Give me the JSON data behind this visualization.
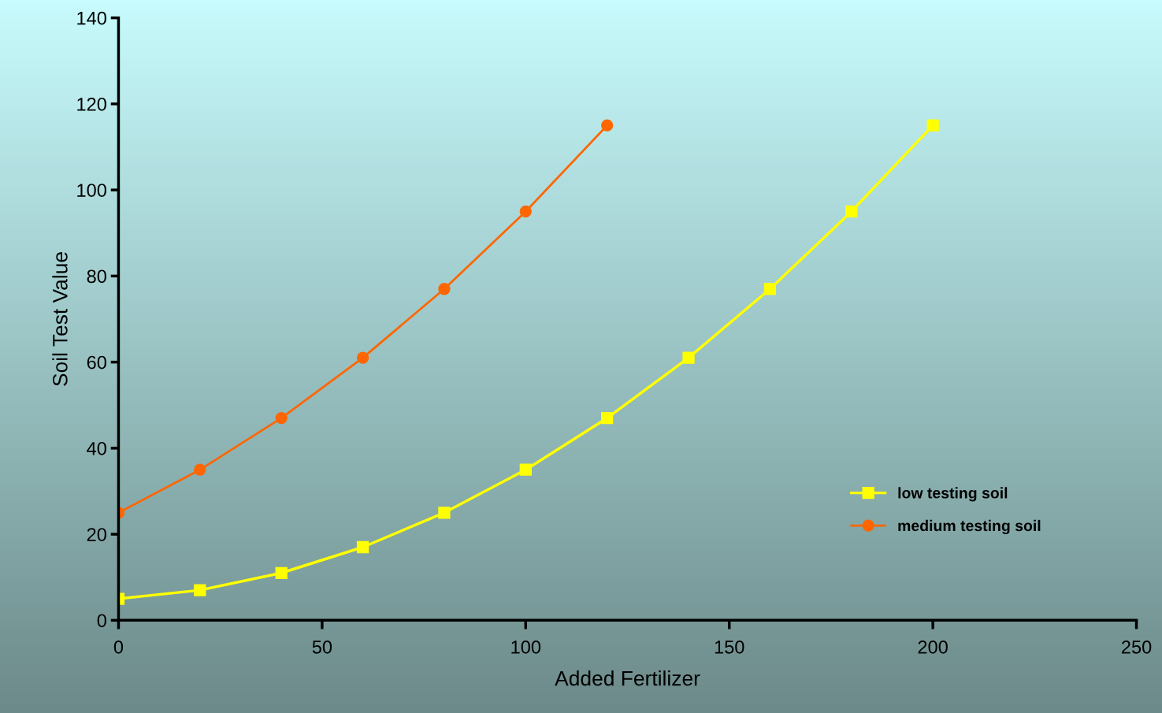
{
  "chart_data": {
    "type": "line",
    "xlabel": "Added Fertilizer",
    "ylabel": "Soil Test Value",
    "xlim": [
      0,
      250
    ],
    "xticks": [
      0,
      50,
      100,
      150,
      200,
      250
    ],
    "ylim": [
      0,
      140
    ],
    "yticks": [
      0,
      20,
      40,
      60,
      80,
      100,
      120,
      140
    ],
    "grid": false,
    "legend": "bottom right",
    "line_style": "solid",
    "series": [
      {
        "name": "low testing soil",
        "color": "#ffff00",
        "marker": "square",
        "x": [
          0,
          20,
          40,
          60,
          80,
          100,
          120,
          140,
          160,
          180,
          200
        ],
        "values": [
          5,
          7,
          11,
          17,
          25,
          35,
          47,
          61,
          77,
          95,
          115
        ]
      },
      {
        "name": "medium testing soil",
        "color": "#ff6600",
        "marker": "circle",
        "x": [
          0,
          20,
          40,
          60,
          80,
          100,
          120
        ],
        "values": [
          25,
          35,
          47,
          61,
          77,
          95,
          115
        ]
      }
    ]
  }
}
